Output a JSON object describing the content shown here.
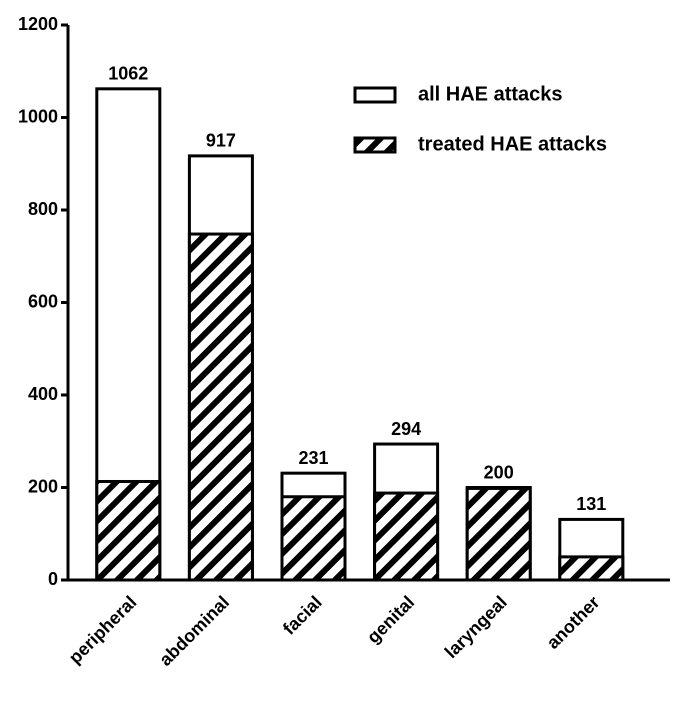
{
  "chart_data": {
    "type": "bar",
    "overlap": true,
    "categories": [
      "peripheral",
      "abdominal",
      "facial",
      "genital",
      "laryngeal",
      "another"
    ],
    "series": [
      {
        "name": "all HAE attacks",
        "color": "#ffffff",
        "hatch": false,
        "values": [
          1062,
          917,
          231,
          294,
          200,
          131
        ],
        "show_labels": true
      },
      {
        "name": "treated HAE attacks",
        "color": "#000000",
        "hatch": true,
        "values": [
          213,
          748,
          180,
          188,
          198,
          50
        ],
        "show_labels": false
      }
    ],
    "ylim": [
      0,
      1200
    ],
    "yticks": [
      0,
      200,
      400,
      600,
      800,
      1000,
      1200
    ],
    "grid": false,
    "legend": "top-right"
  }
}
